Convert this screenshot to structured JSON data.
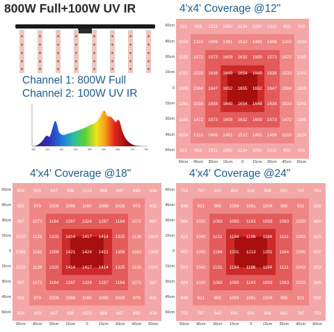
{
  "header": {
    "title": "800W Full+100W UV IR",
    "channel1": "Channel 1: 800W Full",
    "channel2": "Channel 2: 100W UV IR"
  },
  "spectrum_ticks": [
    "380",
    "430",
    "480",
    "530",
    "580",
    "630",
    "680",
    "730",
    "780"
  ],
  "colors": {
    "ring1": "#f4a7a7",
    "ring2": "#ef8686",
    "ring3": "#e35b5b",
    "ring4": "#cd2a2a",
    "ring5": "#a90f0f",
    "title_blue": "#1d5a8c"
  },
  "panels": [
    {
      "id": "12",
      "title": "4'x4' Coverage @12\"",
      "ylabels": [
        "60cm",
        "45cm",
        "30cm",
        "15cm",
        "0",
        "15cm",
        "30cm",
        "45cm",
        "60cm"
      ],
      "xlabels": [
        "60cm",
        "45cm",
        "30cm",
        "15cm",
        "0",
        "15cm",
        "30cm",
        "45cm",
        "60cm"
      ],
      "rows": [
        [
          "921",
          "953",
          "1011",
          "1082",
          "1134",
          "1082",
          "1011",
          "953",
          "921"
        ],
        [
          "1024",
          "1310",
          "1406",
          "1491",
          "1512",
          "1491",
          "1406",
          "1310",
          "1024"
        ],
        [
          "1185",
          "1472",
          "1573",
          "1609",
          "1632",
          "1609",
          "1573",
          "1472",
          "1185"
        ],
        [
          "1261",
          "1533",
          "1638",
          "1649",
          "1654",
          "1649",
          "1638",
          "1533",
          "1261"
        ],
        [
          "1305",
          "1564",
          "1647",
          "1652",
          "1655",
          "1652",
          "1647",
          "1564",
          "1305"
        ],
        [
          "1261",
          "1533",
          "1638",
          "1649",
          "1654",
          "1649",
          "1638",
          "1533",
          "1261"
        ],
        [
          "1185",
          "1472",
          "1573",
          "1609",
          "1632",
          "1609",
          "1573",
          "1472",
          "1185"
        ],
        [
          "1024",
          "1310",
          "1406",
          "1491",
          "1512",
          "1491",
          "1406",
          "1310",
          "1024"
        ],
        [
          "921",
          "953",
          "1011",
          "1082",
          "1134",
          "1082",
          "1011",
          "953",
          "921"
        ]
      ]
    },
    {
      "id": "18",
      "title": "4'x4' Coverage @18\"",
      "ylabels": [
        "60cm",
        "45cm",
        "30cm",
        "15cm",
        "0",
        "15cm",
        "30cm",
        "45cm",
        "60cm"
      ],
      "xlabels": [
        "60cm",
        "45cm",
        "30cm",
        "15cm",
        "0",
        "15cm",
        "30cm",
        "45cm",
        "60cm"
      ],
      "rows": [
        [
          "834",
          "893",
          "947",
          "988",
          "1023",
          "988",
          "947",
          "893",
          "834"
        ],
        [
          "931",
          "979",
          "1026",
          "1086",
          "1160",
          "1086",
          "1026",
          "979",
          "931"
        ],
        [
          "987",
          "1071",
          "1164",
          "1287",
          "1324",
          "1287",
          "1164",
          "1071",
          "987"
        ],
        [
          "1020",
          "1126",
          "1325",
          "1414",
          "1417",
          "1414",
          "1325",
          "1126",
          "1020"
        ],
        [
          "1066",
          "1182",
          "1358",
          "1421",
          "1424",
          "1421",
          "1358",
          "1182",
          "1066"
        ],
        [
          "1020",
          "1126",
          "1325",
          "1414",
          "1417",
          "1414",
          "1325",
          "1126",
          "1020"
        ],
        [
          "987",
          "1071",
          "1164",
          "1287",
          "1324",
          "1287",
          "1164",
          "1071",
          "987"
        ],
        [
          "931",
          "979",
          "1026",
          "1086",
          "1160",
          "1086",
          "1026",
          "979",
          "931"
        ],
        [
          "834",
          "893",
          "947",
          "988",
          "1023",
          "988",
          "947",
          "893",
          "834"
        ]
      ]
    },
    {
      "id": "24",
      "title": "4'x4' Coverage @24\"",
      "ylabels": [
        "60cm",
        "45cm",
        "30cm",
        "15cm",
        "0",
        "15cm",
        "30cm",
        "45cm",
        "60cm"
      ],
      "xlabels": [
        "60cm",
        "45cm",
        "30cm",
        "15cm",
        "0",
        "15cm",
        "30cm",
        "45cm",
        "60cm"
      ],
      "rows": [
        [
          "753",
          "797",
          "842",
          "884",
          "916",
          "884",
          "842",
          "797",
          "753"
        ],
        [
          "838",
          "921",
          "965",
          "1004",
          "1061",
          "1004",
          "965",
          "921",
          "838"
        ],
        [
          "884",
          "1020",
          "1083",
          "1093",
          "1143",
          "1093",
          "1083",
          "1020",
          "884"
        ],
        [
          "923",
          "1042",
          "1131",
          "1184",
          "1196",
          "1184",
          "1131",
          "1042",
          "923"
        ],
        [
          "957",
          "1090",
          "1164",
          "1201",
          "1213",
          "1201",
          "1164",
          "1090",
          "957"
        ],
        [
          "923",
          "1042",
          "1131",
          "1184",
          "1196",
          "1184",
          "1131",
          "1042",
          "923"
        ],
        [
          "884",
          "1020",
          "1083",
          "1093",
          "1143",
          "1093",
          "1083",
          "1020",
          "884"
        ],
        [
          "838",
          "921",
          "965",
          "1004",
          "1061",
          "1004",
          "965",
          "921",
          "838"
        ],
        [
          "753",
          "797",
          "842",
          "884",
          "916",
          "884",
          "842",
          "797",
          "753"
        ]
      ]
    }
  ]
}
